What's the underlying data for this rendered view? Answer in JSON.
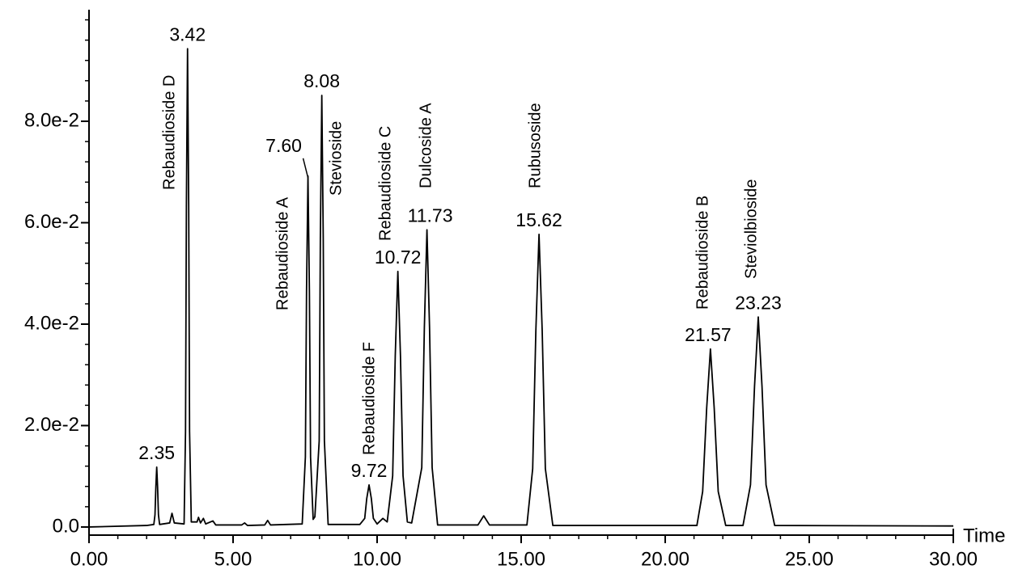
{
  "chart_data": {
    "type": "line",
    "x_label": "Time",
    "xlim": [
      0,
      30
    ],
    "ylim": [
      -0.0016,
      0.102
    ],
    "xticks": [
      {
        "value": 0,
        "label": "0.00"
      },
      {
        "value": 5,
        "label": "5.00"
      },
      {
        "value": 10,
        "label": "10.00"
      },
      {
        "value": 15,
        "label": "15.00"
      },
      {
        "value": 20,
        "label": "20.00"
      },
      {
        "value": 25,
        "label": "25.00"
      },
      {
        "value": 30,
        "label": "30.00"
      }
    ],
    "yticks": [
      {
        "value": 0,
        "label": "0.0"
      },
      {
        "value": 0.02,
        "label": "2.0e-2"
      },
      {
        "value": 0.04,
        "label": "4.0e-2"
      },
      {
        "value": 0.06,
        "label": "6.0e-2"
      },
      {
        "value": 0.08,
        "label": "8.0e-2"
      }
    ],
    "color": "#000000",
    "x": [
      0,
      2.0,
      2.25,
      2.29,
      2.32,
      2.35,
      2.38,
      2.41,
      2.45,
      2.8,
      2.88,
      2.96,
      3.3,
      3.35,
      3.38,
      3.42,
      3.46,
      3.49,
      3.55,
      3.75,
      3.8,
      3.87,
      3.97,
      4.05,
      4.3,
      4.4,
      5.3,
      5.4,
      5.5,
      6.1,
      6.2,
      6.3,
      7.4,
      7.51,
      7.55,
      7.6,
      7.65,
      7.69,
      7.78,
      7.84,
      7.99,
      8.03,
      8.08,
      8.13,
      8.17,
      8.3,
      9.4,
      9.57,
      9.64,
      9.72,
      9.8,
      9.87,
      10.0,
      10.2,
      10.35,
      10.54,
      10.63,
      10.72,
      10.81,
      10.9,
      11.05,
      11.2,
      11.55,
      11.64,
      11.73,
      11.82,
      11.91,
      12.1,
      13.5,
      13.7,
      13.9,
      15.2,
      15.4,
      15.51,
      15.62,
      15.73,
      15.84,
      16.1,
      21.1,
      21.3,
      21.44,
      21.57,
      21.7,
      21.84,
      22.1,
      22.7,
      22.96,
      23.1,
      23.23,
      23.36,
      23.5,
      23.8,
      30
    ],
    "values": [
      0,
      0.0003,
      0.0005,
      0.0024,
      0.0079,
      0.0118,
      0.0079,
      0.0024,
      0.0005,
      0.0008,
      0.0027,
      0.0008,
      0.0006,
      0.0189,
      0.0632,
      0.0943,
      0.0632,
      0.0189,
      0.001,
      0.001,
      0.0019,
      0.0008,
      0.0017,
      0.0006,
      0.0012,
      0.0004,
      0.0004,
      0.0008,
      0.0003,
      0.0004,
      0.0013,
      0.0004,
      0.0006,
      0.0138,
      0.0464,
      0.0692,
      0.0464,
      0.0138,
      0.0015,
      0.002,
      0.017,
      0.057,
      0.0851,
      0.057,
      0.017,
      0.0005,
      0.0005,
      0.0017,
      0.0056,
      0.0083,
      0.0056,
      0.0017,
      0.0006,
      0.0017,
      0.001,
      0.0101,
      0.0338,
      0.0504,
      0.0338,
      0.0101,
      0.001,
      0.0008,
      0.0117,
      0.0393,
      0.0586,
      0.0393,
      0.0117,
      0.0004,
      0.0004,
      0.0022,
      0.0004,
      0.0004,
      0.0115,
      0.0387,
      0.0577,
      0.0387,
      0.0115,
      0.0003,
      0.0003,
      0.007,
      0.0235,
      0.0351,
      0.0235,
      0.007,
      0.0003,
      0.0003,
      0.0083,
      0.0277,
      0.0414,
      0.0277,
      0.0083,
      0.0003,
      0.0002
    ],
    "peaks": {
      "x": [
        2.35,
        3.42,
        7.6,
        8.08,
        9.72,
        10.72,
        11.73,
        15.62,
        21.57,
        23.23
      ],
      "value_labels": [
        "2.35",
        "3.42",
        "7.60",
        "8.08",
        "9.72",
        "10.72",
        "11.73",
        "15.62",
        "21.57",
        "23.23"
      ],
      "names": [
        null,
        "Rebaudioside D",
        "Rebaudioside A",
        "Stevioside",
        "Rebaudioside F",
        "Rebaudioside C",
        "Dulcoside A",
        "Rubusoside",
        "Rebaudioside B",
        "Steviolbioside"
      ]
    }
  }
}
